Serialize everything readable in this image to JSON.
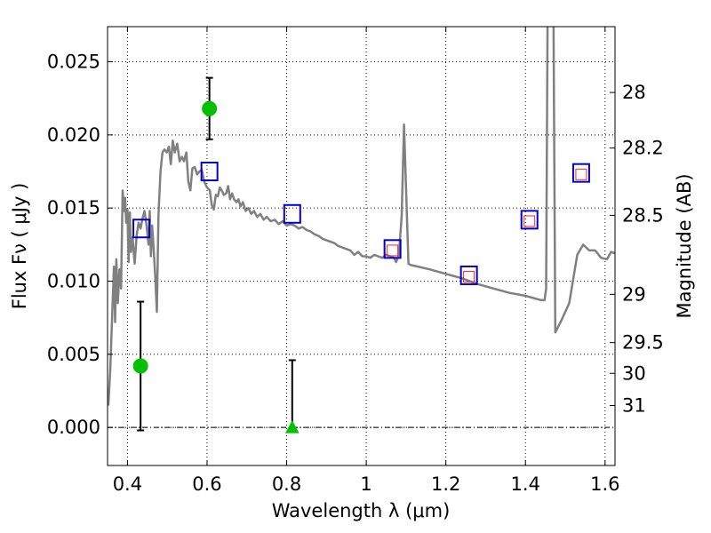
{
  "chart_data": {
    "type": "scatter",
    "xlabel": "Wavelength  λ (μm)",
    "ylabel": "Flux  Fν  ( μJy )",
    "ylabel_right": "Magnitude (AB)",
    "xlim": [
      0.35,
      1.625
    ],
    "ylim": [
      -0.0026,
      0.0274
    ],
    "grid": true,
    "x_ticks": [
      {
        "value": 0.4,
        "label": "0.4"
      },
      {
        "value": 0.6,
        "label": "0.6"
      },
      {
        "value": 0.8,
        "label": "0.8"
      },
      {
        "value": 1.0,
        "label": "1"
      },
      {
        "value": 1.2,
        "label": "1.2"
      },
      {
        "value": 1.4,
        "label": "1.4"
      },
      {
        "value": 1.6,
        "label": "1.6"
      }
    ],
    "y_ticks": [
      {
        "value": 0.0,
        "label": "0.000"
      },
      {
        "value": 0.005,
        "label": "0.005"
      },
      {
        "value": 0.01,
        "label": "0.010"
      },
      {
        "value": 0.015,
        "label": "0.015"
      },
      {
        "value": 0.02,
        "label": "0.020"
      },
      {
        "value": 0.025,
        "label": "0.025"
      }
    ],
    "right_ticks": [
      {
        "label": "28",
        "flux": 0.0229
      },
      {
        "label": "28.2",
        "flux": 0.0191
      },
      {
        "label": "28.5",
        "flux": 0.0145
      },
      {
        "label": "29",
        "flux": 0.0091
      },
      {
        "label": "29.5",
        "flux": 0.0058
      },
      {
        "label": "30",
        "flux": 0.0037
      },
      {
        "label": "31",
        "flux": 0.0015
      }
    ],
    "zero_line": 0,
    "series": [
      {
        "kind": "model_sed",
        "color": "#808080",
        "points": [
          [
            0.352,
            0.0015
          ],
          [
            0.357,
            0.004
          ],
          [
            0.362,
            0.008
          ],
          [
            0.366,
            0.011
          ],
          [
            0.369,
            0.0072
          ],
          [
            0.372,
            0.0115
          ],
          [
            0.376,
            0.0085
          ],
          [
            0.38,
            0.0108
          ],
          [
            0.384,
            0.0095
          ],
          [
            0.388,
            0.0162
          ],
          [
            0.391,
            0.0148
          ],
          [
            0.394,
            0.0157
          ],
          [
            0.397,
            0.014
          ],
          [
            0.4,
            0.0149
          ],
          [
            0.403,
            0.0113
          ],
          [
            0.406,
            0.0147
          ],
          [
            0.409,
            0.012
          ],
          [
            0.413,
            0.013
          ],
          [
            0.418,
            0.0112
          ],
          [
            0.423,
            0.0131
          ],
          [
            0.428,
            0.014
          ],
          [
            0.433,
            0.0136
          ],
          [
            0.438,
            0.0143
          ],
          [
            0.443,
            0.0148
          ],
          [
            0.448,
            0.0138
          ],
          [
            0.453,
            0.0125
          ],
          [
            0.456,
            0.0148
          ],
          [
            0.459,
            0.0117
          ],
          [
            0.462,
            0.0138
          ],
          [
            0.466,
            0.0122
          ],
          [
            0.47,
            0.0103
          ],
          [
            0.474,
            0.0079
          ],
          [
            0.478,
            0.0145
          ],
          [
            0.483,
            0.0175
          ],
          [
            0.488,
            0.0188
          ],
          [
            0.493,
            0.019
          ],
          [
            0.499,
            0.0188
          ],
          [
            0.504,
            0.0192
          ],
          [
            0.509,
            0.018
          ],
          [
            0.514,
            0.0196
          ],
          [
            0.519,
            0.0188
          ],
          [
            0.525,
            0.0194
          ],
          [
            0.531,
            0.0182
          ],
          [
            0.537,
            0.0185
          ],
          [
            0.542,
            0.0182
          ],
          [
            0.548,
            0.0188
          ],
          [
            0.553,
            0.0168
          ],
          [
            0.558,
            0.0162
          ],
          [
            0.563,
            0.0177
          ],
          [
            0.569,
            0.0178
          ],
          [
            0.575,
            0.0173
          ],
          [
            0.581,
            0.0175
          ],
          [
            0.587,
            0.0176
          ],
          [
            0.593,
            0.0168
          ],
          [
            0.6,
            0.0164
          ],
          [
            0.607,
            0.0162
          ],
          [
            0.612,
            0.0152
          ],
          [
            0.617,
            0.0149
          ],
          [
            0.622,
            0.0159
          ],
          [
            0.627,
            0.0158
          ],
          [
            0.632,
            0.0164
          ],
          [
            0.637,
            0.0162
          ],
          [
            0.642,
            0.0159
          ],
          [
            0.648,
            0.016
          ],
          [
            0.653,
            0.0165
          ],
          [
            0.658,
            0.0156
          ],
          [
            0.663,
            0.016
          ],
          [
            0.668,
            0.0156
          ],
          [
            0.674,
            0.0154
          ],
          [
            0.679,
            0.0156
          ],
          [
            0.684,
            0.0151
          ],
          [
            0.69,
            0.0154
          ],
          [
            0.697,
            0.0148
          ],
          [
            0.704,
            0.015
          ],
          [
            0.711,
            0.0146
          ],
          [
            0.718,
            0.0148
          ],
          [
            0.726,
            0.0144
          ],
          [
            0.734,
            0.0146
          ],
          [
            0.742,
            0.0142
          ],
          [
            0.75,
            0.0144
          ],
          [
            0.76,
            0.0141
          ],
          [
            0.77,
            0.0142
          ],
          [
            0.78,
            0.0139
          ],
          [
            0.79,
            0.0141
          ],
          [
            0.8,
            0.0138
          ],
          [
            0.81,
            0.0139
          ],
          [
            0.82,
            0.0138
          ],
          [
            0.83,
            0.0136
          ],
          [
            0.84,
            0.0137
          ],
          [
            0.85,
            0.0135
          ],
          [
            0.86,
            0.0134
          ],
          [
            0.87,
            0.0132
          ],
          [
            0.88,
            0.0131
          ],
          [
            0.89,
            0.0129
          ],
          [
            0.9,
            0.0128
          ],
          [
            0.91,
            0.0127
          ],
          [
            0.92,
            0.0126
          ],
          [
            0.93,
            0.0124
          ],
          [
            0.94,
            0.0123
          ],
          [
            0.95,
            0.0122
          ],
          [
            0.96,
            0.0121
          ],
          [
            0.97,
            0.0118
          ],
          [
            0.98,
            0.012
          ],
          [
            0.99,
            0.0117
          ],
          [
            1.0,
            0.0117
          ],
          [
            1.01,
            0.0116
          ],
          [
            1.02,
            0.0118
          ],
          [
            1.03,
            0.0117
          ],
          [
            1.04,
            0.0116
          ],
          [
            1.05,
            0.0118
          ],
          [
            1.06,
            0.0117
          ],
          [
            1.07,
            0.0116
          ],
          [
            1.075,
            0.0113
          ],
          [
            1.082,
            0.0118
          ],
          [
            1.089,
            0.0145
          ],
          [
            1.095,
            0.0207
          ],
          [
            1.1,
            0.0163
          ],
          [
            1.106,
            0.0112
          ],
          [
            1.112,
            0.0111
          ],
          [
            1.13,
            0.011
          ],
          [
            1.16,
            0.0108
          ],
          [
            1.2,
            0.0105
          ],
          [
            1.24,
            0.0102
          ],
          [
            1.28,
            0.0098
          ],
          [
            1.32,
            0.0095
          ],
          [
            1.36,
            0.0092
          ],
          [
            1.4,
            0.009
          ],
          [
            1.44,
            0.0087
          ],
          [
            1.448,
            0.0087
          ],
          [
            1.452,
            0.0095
          ],
          [
            1.456,
            0.03
          ],
          [
            1.47,
            0.03
          ],
          [
            1.475,
            0.0065
          ],
          [
            1.49,
            0.0073
          ],
          [
            1.51,
            0.0085
          ],
          [
            1.53,
            0.0118
          ],
          [
            1.545,
            0.0125
          ],
          [
            1.56,
            0.0121
          ],
          [
            1.575,
            0.0121
          ],
          [
            1.59,
            0.0116
          ],
          [
            1.605,
            0.0115
          ],
          [
            1.615,
            0.012
          ],
          [
            1.625,
            0.0119
          ]
        ]
      },
      {
        "kind": "observed_detections",
        "color": "#00c000",
        "points": [
          {
            "x": 0.433,
            "y": 0.0042,
            "err": 0.0044
          },
          {
            "x": 0.606,
            "y": 0.0218,
            "err": 0.0021
          }
        ]
      },
      {
        "kind": "observed_upper_limit",
        "color": "#00c000",
        "points": [
          {
            "x": 0.814,
            "y": 0.0,
            "err": 0.0046
          }
        ]
      },
      {
        "kind": "model_photometry",
        "color": "#0000cc",
        "points": [
          {
            "x": 0.435,
            "y": 0.0136
          },
          {
            "x": 0.606,
            "y": 0.0175
          },
          {
            "x": 0.814,
            "y": 0.0146
          },
          {
            "x": 1.066,
            "y": 0.0122
          },
          {
            "x": 1.258,
            "y": 0.0104
          },
          {
            "x": 1.41,
            "y": 0.0142
          },
          {
            "x": 1.54,
            "y": 0.0174
          }
        ]
      },
      {
        "kind": "filter_model",
        "color": "#ff2020",
        "points": [
          {
            "x": 1.066,
            "y": 0.0121
          },
          {
            "x": 1.258,
            "y": 0.0103
          },
          {
            "x": 1.41,
            "y": 0.0141
          },
          {
            "x": 1.54,
            "y": 0.0173
          }
        ]
      }
    ]
  }
}
